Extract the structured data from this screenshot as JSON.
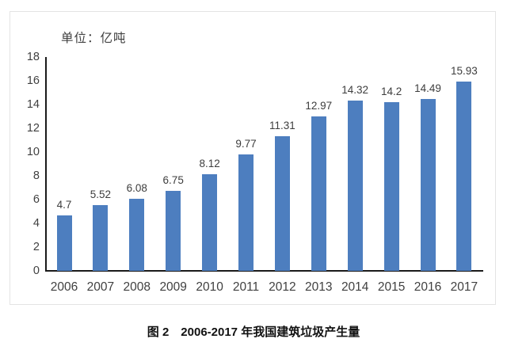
{
  "chart": {
    "unit_label": "单位：亿吨"
  },
  "caption": "图 2　2006-2017 年我国建筑垃圾产生量",
  "colors": {
    "bar": "#4d7ebf",
    "axis": "#1a1a1a",
    "tick_label": "#404040",
    "data_label": "#3d3d3d",
    "panel_border": "#e4e4e4"
  },
  "chart_data": {
    "type": "bar",
    "title": "单位：亿吨",
    "caption": "图 2　2006-2017 年我国建筑垃圾产生量",
    "categories": [
      "2006",
      "2007",
      "2008",
      "2009",
      "2010",
      "2011",
      "2012",
      "2013",
      "2014",
      "2015",
      "2016",
      "2017"
    ],
    "values": [
      4.7,
      5.52,
      6.08,
      6.75,
      8.12,
      9.77,
      11.31,
      12.97,
      14.32,
      14.2,
      14.49,
      15.93
    ],
    "value_labels": [
      "4.7",
      "5.52",
      "6.08",
      "6.75",
      "8.12",
      "9.77",
      "11.31",
      "12.97",
      "14.32",
      "14.2",
      "14.49",
      "15.93"
    ],
    "xlabel": "",
    "ylabel": "",
    "yticks": [
      0,
      2,
      4,
      6,
      8,
      10,
      12,
      14,
      16,
      18
    ],
    "ylim": [
      0,
      18
    ],
    "grid": false,
    "legend": false,
    "bar_color": "#4d7ebf",
    "data_labels_shown": true
  }
}
